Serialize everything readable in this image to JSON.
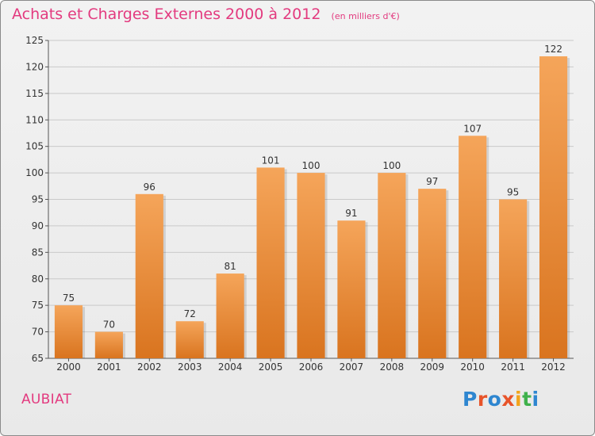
{
  "header": {
    "title": "Achats et Charges Externes 2000 à 2012",
    "subtitle": "(en milliers d'€)"
  },
  "footer": {
    "place": "AUBIAT",
    "logo_text": "Proxiti",
    "logo_letters": [
      {
        "ch": "P",
        "color": "#2e86d0"
      },
      {
        "ch": "r",
        "color": "#e8542a"
      },
      {
        "ch": "o",
        "color": "#2e86d0"
      },
      {
        "ch": "x",
        "color": "#e8542a"
      },
      {
        "ch": "i",
        "color": "#f3a41c"
      },
      {
        "ch": "t",
        "color": "#3fb14b"
      },
      {
        "ch": "i",
        "color": "#2e86d0"
      }
    ]
  },
  "colors": {
    "title": "#e33a7f",
    "bar_top": "#f5a55a",
    "bar_bottom": "#d9741f",
    "grid": "#c9c9c9"
  },
  "chart_data": {
    "type": "bar",
    "categories": [
      "2000",
      "2001",
      "2002",
      "2003",
      "2004",
      "2005",
      "2006",
      "2007",
      "2008",
      "2009",
      "2010",
      "2011",
      "2012"
    ],
    "values": [
      75,
      70,
      96,
      72,
      81,
      101,
      100,
      91,
      100,
      97,
      107,
      95,
      122
    ],
    "title": "Achats et Charges Externes 2000 à 2012",
    "subtitle": "(en milliers d'€)",
    "xlabel": "",
    "ylabel": "",
    "ylim": [
      65,
      125
    ],
    "yticks": [
      65,
      70,
      75,
      80,
      85,
      90,
      95,
      100,
      105,
      110,
      115,
      120,
      125
    ],
    "grid": true,
    "data_labels": true
  }
}
